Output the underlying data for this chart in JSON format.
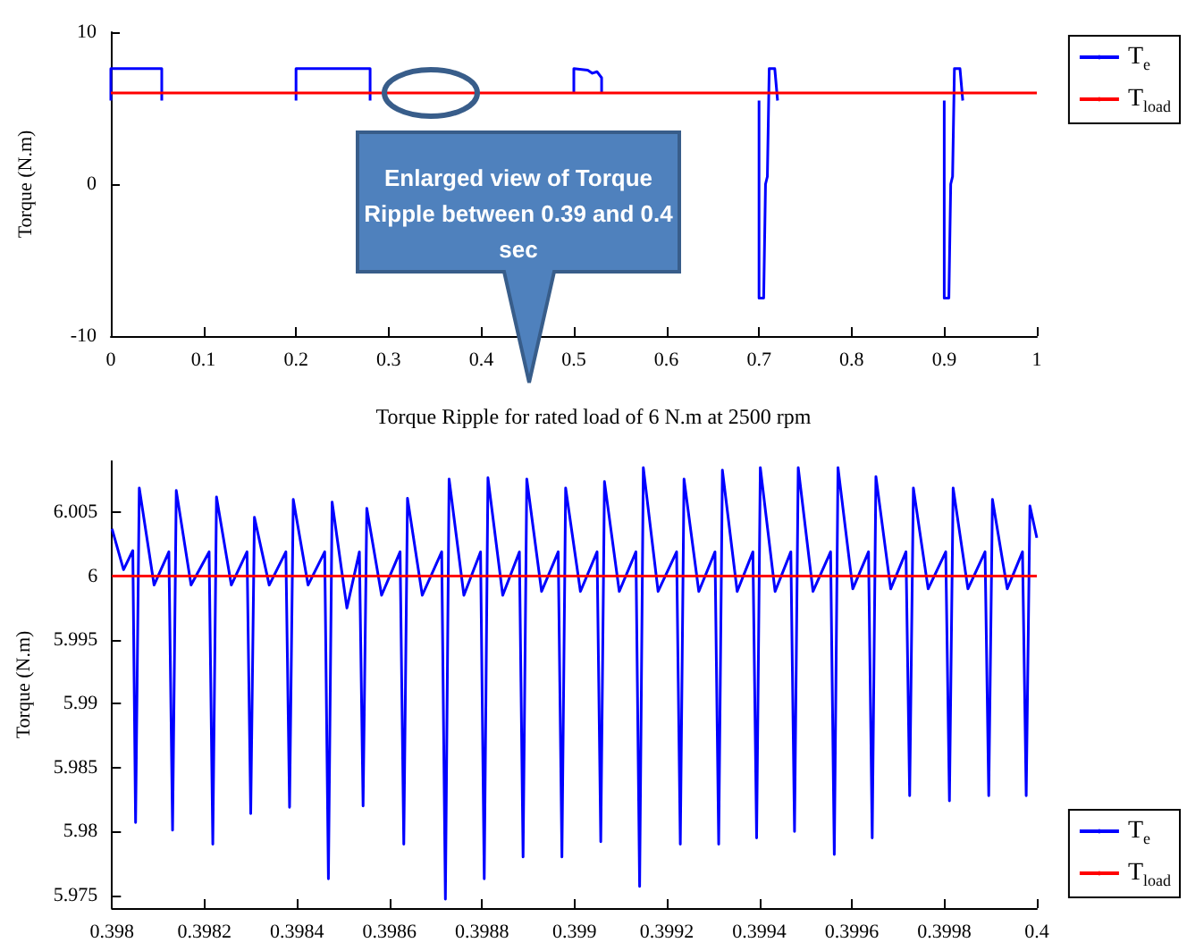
{
  "chart_data": [
    {
      "type": "line",
      "ylabel": "Torque (N.m)",
      "annotations": [
        "Enlarged view of Torque Ripple between  0.39 and  0.4 sec"
      ],
      "xlim": [
        0,
        1
      ],
      "xticks": [
        0,
        0.1,
        0.2,
        0.3,
        0.4,
        0.5,
        0.6,
        0.7,
        0.8,
        0.9,
        1
      ],
      "ylim": [
        -10,
        10
      ],
      "yticks": [
        -10,
        0,
        10
      ],
      "grid": false,
      "legend": "right",
      "marker": "none",
      "series": [
        {
          "name": "T$_{e}$",
          "color": "#0000ff",
          "x": [
            0,
            0,
            0.055,
            0.055,
            0.1,
            0.2,
            0.2,
            0.28,
            0.28,
            0.4,
            0.5,
            0.5,
            0.515,
            0.52,
            0.525,
            0.53,
            0.53,
            0.6,
            0.7,
            0.7,
            0.705,
            0.707,
            0.709,
            0.711,
            0.717,
            0.72,
            0.8,
            0.9,
            0.9,
            0.905,
            0.907,
            0.909,
            0.911,
            0.917,
            0.92
          ],
          "values": [
            5.5,
            7.6,
            7.6,
            5.5,
            null,
            5.5,
            7.6,
            7.6,
            5.5,
            null,
            6,
            7.6,
            7.5,
            7.3,
            7.4,
            7,
            6,
            null,
            5.5,
            -7.5,
            -7.5,
            0,
            0.5,
            7.6,
            7.6,
            5.5,
            null,
            5.5,
            -7.5,
            -7.5,
            0,
            0.5,
            7.6,
            7.6,
            5.5
          ]
        },
        {
          "name": "T$_{load}$",
          "color": "#ff0000",
          "x": [
            0,
            1
          ],
          "values": [
            6,
            6
          ]
        }
      ]
    },
    {
      "type": "line",
      "title": "Torque Ripple for rated load of 6 N.m at 2500 rpm",
      "ylabel": "Torque (N.m)",
      "xlim": [
        0.398,
        0.4
      ],
      "xticks": [
        0.398,
        0.3982,
        0.3984,
        0.3986,
        0.3988,
        0.399,
        0.3992,
        0.3994,
        0.3996,
        0.3998,
        0.4
      ],
      "ylim": [
        5.974,
        6.009
      ],
      "yticks": [
        5.975,
        5.98,
        5.985,
        5.99,
        5.995,
        6,
        6.005
      ],
      "grid": false,
      "legend": "bottom right",
      "marker": "none",
      "series": [
        {
          "name": "T$_{e}$",
          "color": "#0000ff",
          "x": [
            0.398,
            0.398025,
            0.398045,
            0.398051,
            0.398059,
            0.398091,
            0.398123,
            0.398131,
            0.398139,
            0.398171,
            0.39821,
            0.398218,
            0.398226,
            0.398258,
            0.398292,
            0.3983,
            0.398308,
            0.39834,
            0.398376,
            0.398384,
            0.398392,
            0.398424,
            0.39846,
            0.398468,
            0.398476,
            0.398508,
            0.398535,
            0.398543,
            0.398551,
            0.398583,
            0.398623,
            0.398631,
            0.398639,
            0.398671,
            0.398713,
            0.398721,
            0.398729,
            0.398761,
            0.398797,
            0.398805,
            0.398813,
            0.398845,
            0.398881,
            0.398889,
            0.398897,
            0.398929,
            0.398965,
            0.398973,
            0.398981,
            0.399013,
            0.399049,
            0.399057,
            0.399065,
            0.399097,
            0.399133,
            0.399141,
            0.399149,
            0.399181,
            0.399221,
            0.399229,
            0.399237,
            0.399269,
            0.399304,
            0.399312,
            0.39932,
            0.399352,
            0.399386,
            0.399394,
            0.399402,
            0.399434,
            0.399468,
            0.399476,
            0.399484,
            0.399516,
            0.399554,
            0.399562,
            0.39957,
            0.399602,
            0.399636,
            0.399644,
            0.399652,
            0.399684,
            0.399717,
            0.399725,
            0.399733,
            0.399765,
            0.399803,
            0.399811,
            0.399819,
            0.399851,
            0.399888,
            0.399896,
            0.399904,
            0.399936,
            0.399969,
            0.399977,
            0.399985,
            0.4
          ],
          "values": [
            6.0037,
            6.0005,
            6.002,
            5.9807,
            6.0069,
            5.9993,
            6.0019,
            5.9801,
            6.0067,
            5.9993,
            6.0019,
            5.979,
            6.0062,
            5.9993,
            6.0019,
            5.9814,
            6.0046,
            5.9993,
            6.0019,
            5.9819,
            6.006,
            5.9993,
            6.0019,
            5.9763,
            6.0058,
            5.9975,
            6.0019,
            5.982,
            6.0053,
            5.9985,
            6.0019,
            5.979,
            6.0061,
            5.9985,
            6.0019,
            5.9747,
            6.0076,
            5.9985,
            6.0019,
            5.9763,
            6.0077,
            5.9985,
            6.0019,
            5.978,
            6.0076,
            5.9988,
            6.0019,
            5.978,
            6.0069,
            5.9988,
            6.0019,
            5.9792,
            6.0074,
            5.9988,
            6.0019,
            5.9757,
            6.0085,
            5.9988,
            6.0019,
            5.979,
            6.0076,
            5.9988,
            6.0019,
            5.979,
            6.0083,
            5.9988,
            6.0019,
            5.9795,
            6.0085,
            5.9988,
            6.0019,
            5.98,
            6.0085,
            5.9988,
            6.0019,
            5.9782,
            6.0085,
            5.999,
            6.0019,
            5.9795,
            6.0078,
            5.999,
            6.0019,
            5.9828,
            6.0069,
            5.999,
            6.0019,
            5.9824,
            6.0069,
            5.999,
            6.0019,
            5.9828,
            6.006,
            5.999,
            6.0019,
            5.9828,
            6.0055,
            6.003
          ]
        },
        {
          "name": "T$_{load}$",
          "color": "#ff0000",
          "x": [
            0.398,
            0.4
          ],
          "values": [
            6,
            6
          ]
        }
      ]
    }
  ]
}
